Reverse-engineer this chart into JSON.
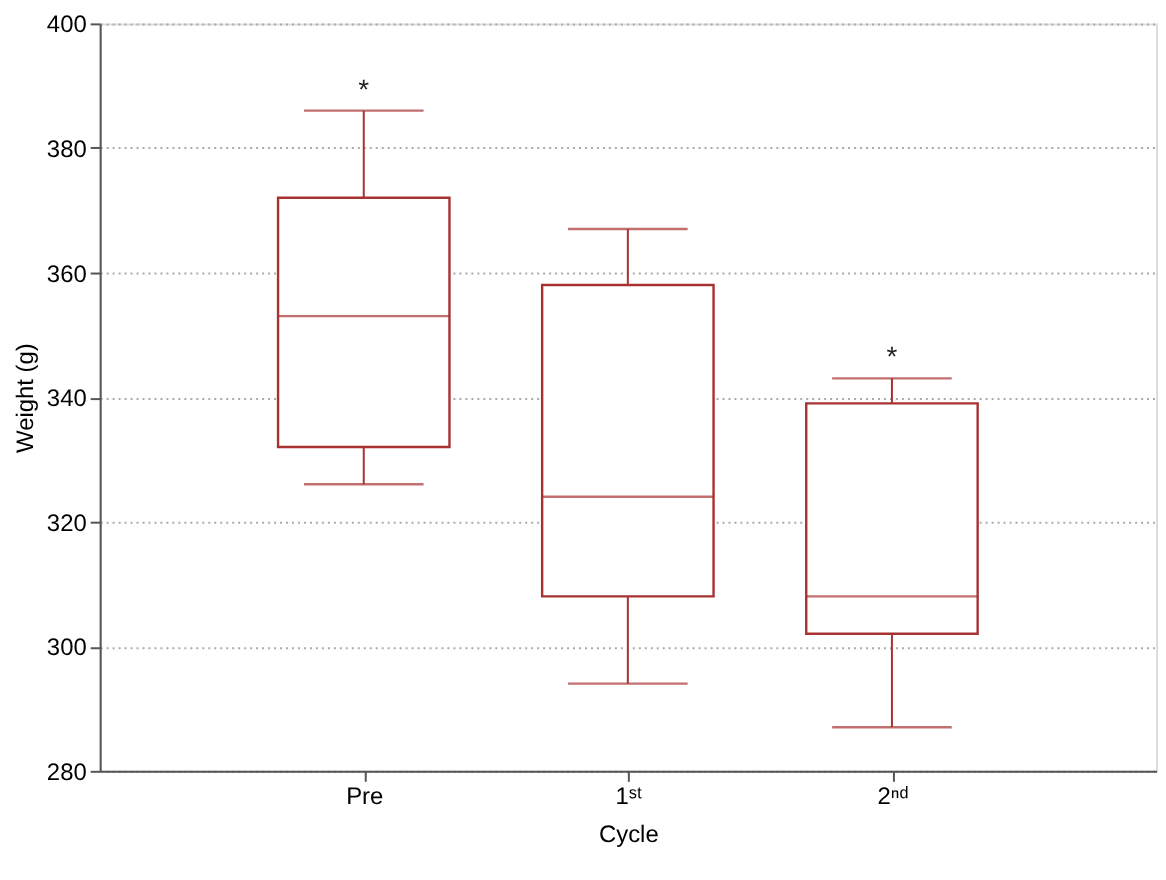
{
  "chart_data": {
    "type": "box",
    "xlabel": "Cycle",
    "ylabel": "Weight (g)",
    "categories": [
      "Pre",
      "1ˢᵗ",
      "2ⁿᵈ"
    ],
    "color": "#a83232",
    "boxes": [
      {
        "low": 326,
        "q1": 332,
        "median": 353,
        "q3": 372,
        "high": 386
      },
      {
        "low": 294,
        "q1": 308,
        "median": 324,
        "q3": 358,
        "high": 367
      },
      {
        "low": 287,
        "q1": 302,
        "median": 308,
        "q3": 339,
        "high": 343
      }
    ],
    "ylim": [
      280,
      400
    ],
    "yticks": [
      280,
      300,
      320,
      340,
      360,
      380,
      400
    ],
    "grid": "y",
    "annotations": [
      "*",
      "*"
    ]
  }
}
